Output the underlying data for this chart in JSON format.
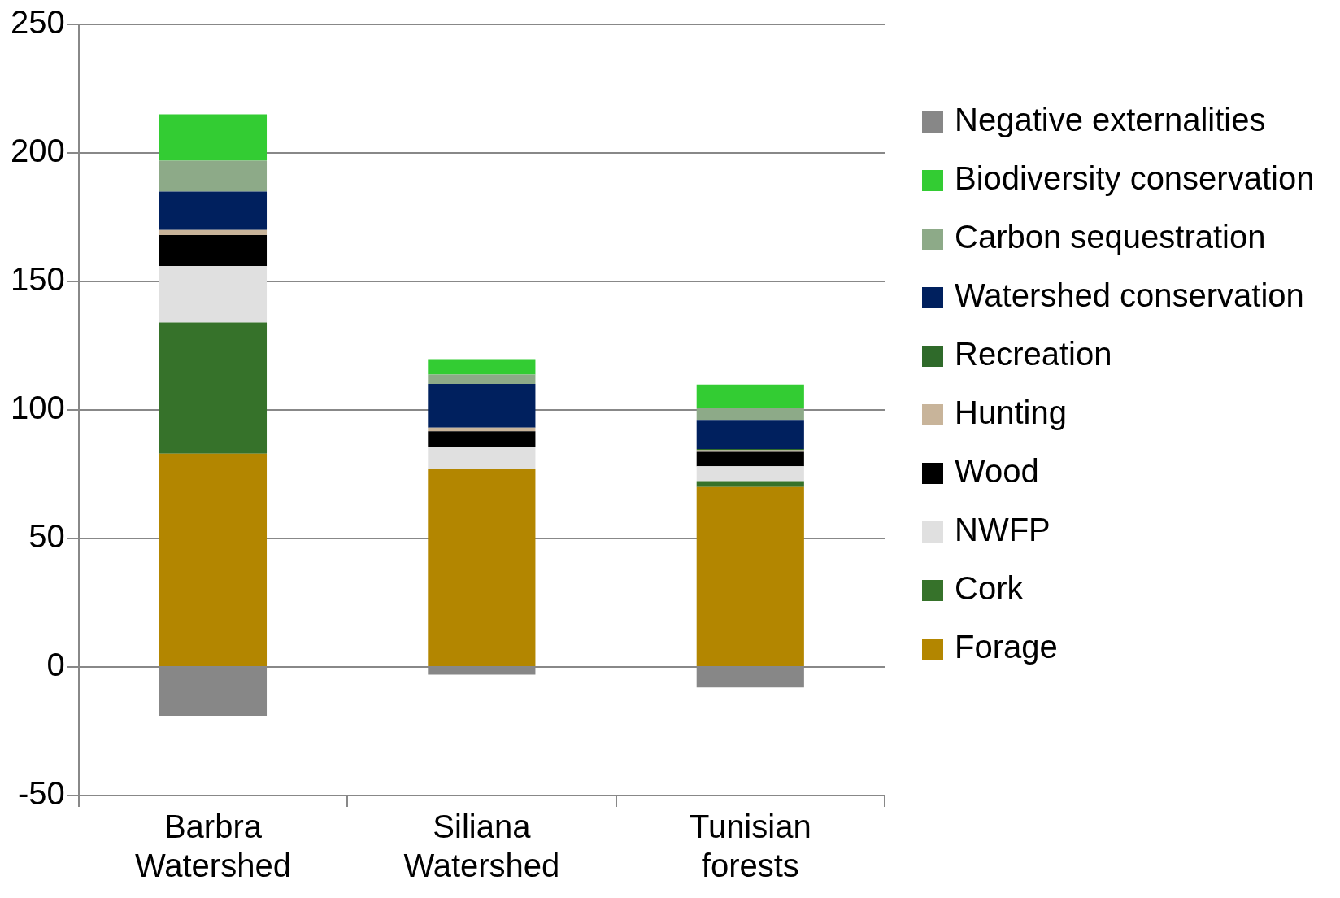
{
  "chart_data": {
    "type": "bar",
    "stacked": true,
    "categories": [
      "Barbra Watershed",
      "Siliana Watershed",
      "Tunisian forests"
    ],
    "series": [
      {
        "name": "Forage",
        "color": "#b38600",
        "values": [
          83,
          77,
          70
        ]
      },
      {
        "name": "Cork",
        "color": "#36722a",
        "values": [
          51,
          0,
          2.3
        ]
      },
      {
        "name": "NWFP",
        "color": "#e0e0e0",
        "values": [
          22,
          8.7,
          5.8
        ]
      },
      {
        "name": "Wood",
        "color": "#000000",
        "values": [
          12,
          6,
          5.6
        ]
      },
      {
        "name": "Hunting",
        "color": "#c8b49a",
        "values": [
          2,
          1.4,
          0.6
        ]
      },
      {
        "name": "Recreation",
        "color": "#2f6a2a",
        "values": [
          0,
          0,
          0.5
        ]
      },
      {
        "name": "Watershed conservation",
        "color": "#00205e",
        "values": [
          15,
          17,
          11.3
        ]
      },
      {
        "name": "Carbon sequestration",
        "color": "#8daa88",
        "values": [
          12,
          3.7,
          4.6
        ]
      },
      {
        "name": "Biodiversity conservation",
        "color": "#33cc33",
        "values": [
          18,
          6,
          9.2
        ]
      },
      {
        "name": "Negative externalities",
        "color": "#878787",
        "values": [
          -19,
          -3,
          -8
        ]
      }
    ],
    "ylim": [
      -50,
      250
    ],
    "yticks": [
      -50,
      0,
      50,
      100,
      150,
      200,
      250
    ],
    "grid": "y",
    "legend": "right"
  }
}
